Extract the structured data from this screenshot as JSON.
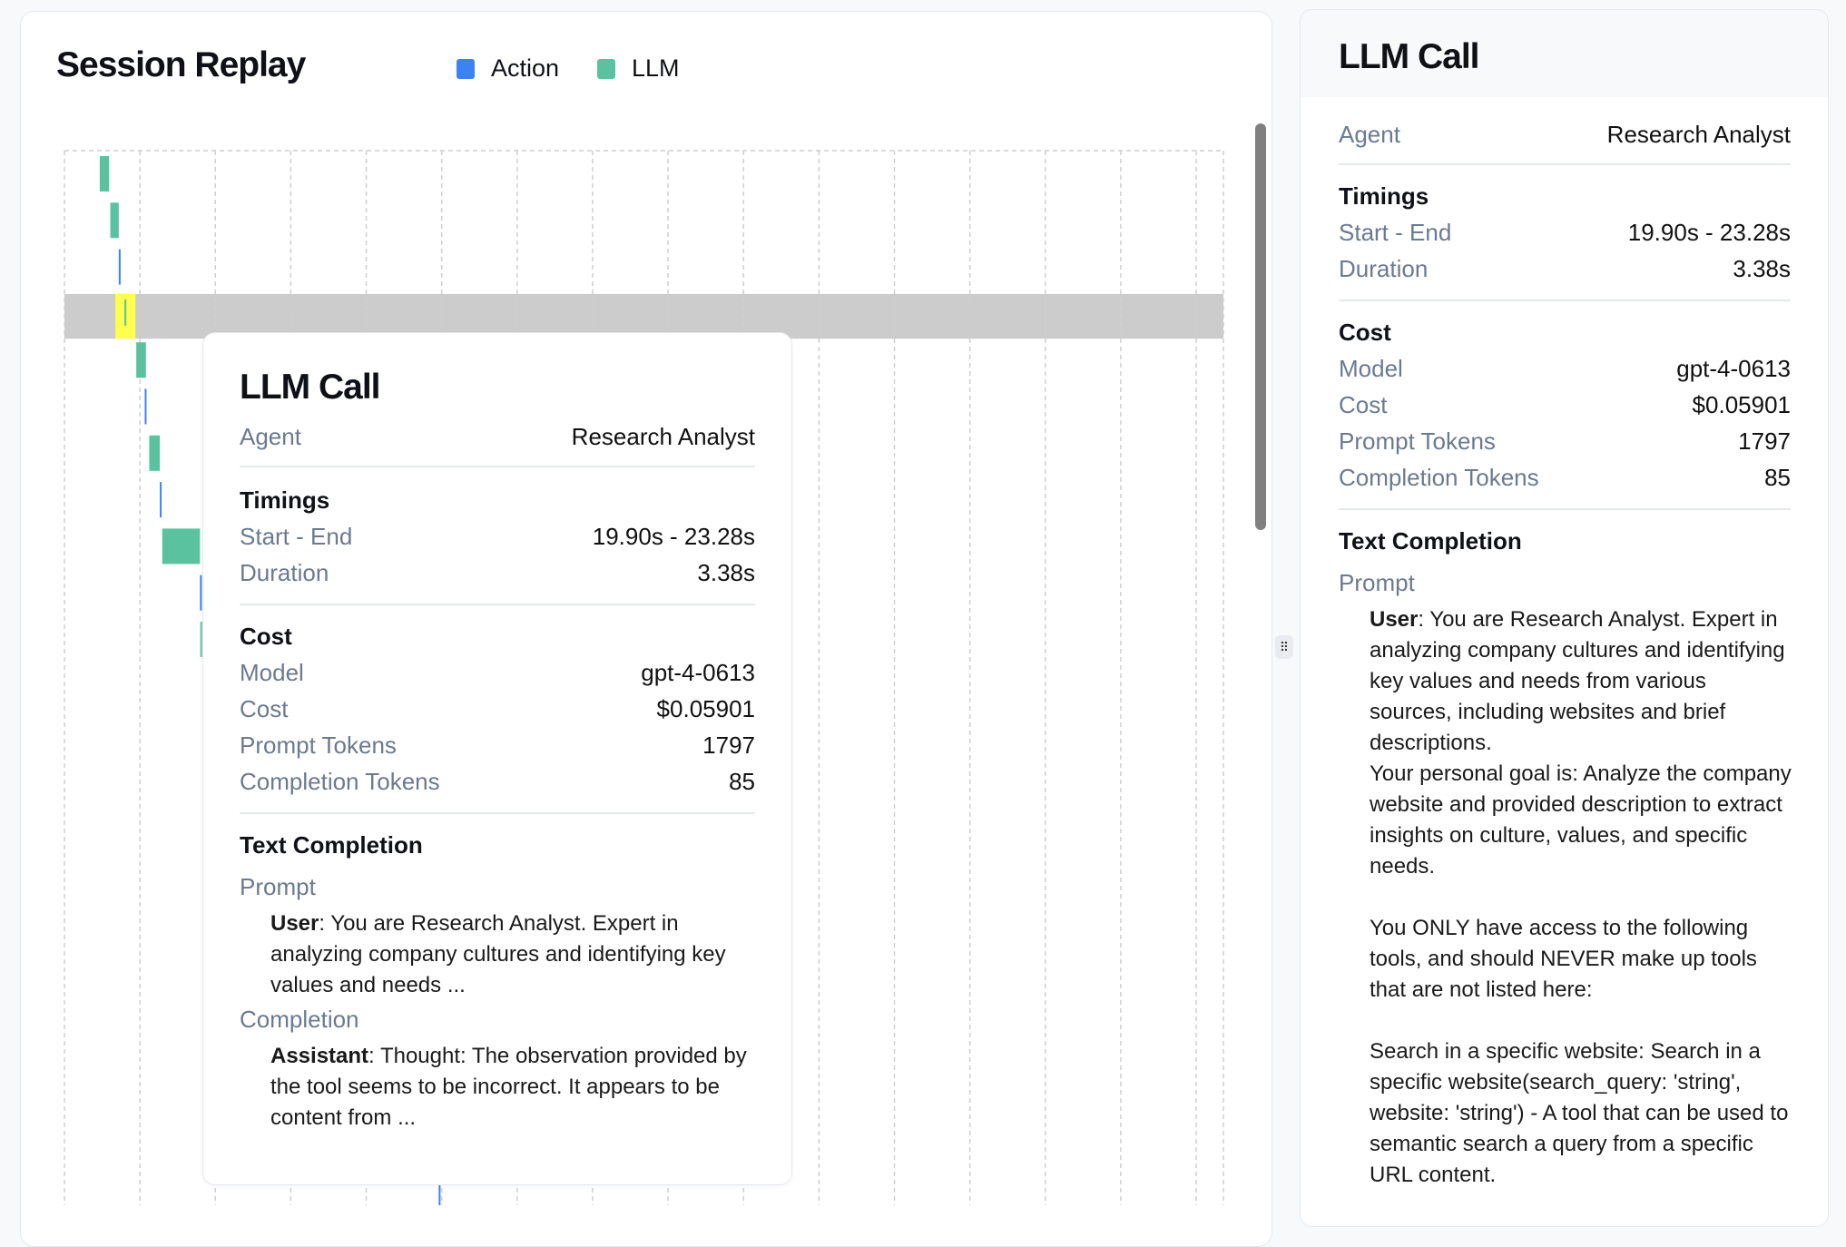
{
  "session": {
    "title": "Session Replay",
    "legend": [
      {
        "label": "Action",
        "color": "#3b82f6"
      },
      {
        "label": "LLM",
        "color": "#5bc2a0"
      }
    ]
  },
  "chart_data": {
    "type": "timeline",
    "x_unit": "s",
    "xlim": [
      0,
      384
    ],
    "grid": true,
    "grid_interval": 25,
    "highlight_color": "#ffff4d",
    "selected_row_color": "#cccccc",
    "bars": [
      {
        "type": "LLM",
        "start": 11.7,
        "end": 14.8
      },
      {
        "type": "LLM",
        "start": 15.2,
        "end": 18.0
      },
      {
        "type": "Action",
        "start": 18.0,
        "end": 18.3
      },
      {
        "type": "LLM",
        "start": 19.9,
        "end": 23.28,
        "selected": true
      },
      {
        "type": "LLM",
        "start": 23.8,
        "end": 27.0
      },
      {
        "type": "Action",
        "start": 26.6,
        "end": 26.9
      },
      {
        "type": "LLM",
        "start": 28.1,
        "end": 31.6
      },
      {
        "type": "Action",
        "start": 31.6,
        "end": 32.0
      },
      {
        "type": "LLM",
        "start": 32.4,
        "end": 44.9
      },
      {
        "type": "Action",
        "start": 44.9,
        "end": 45.3
      },
      {
        "type": "LLM",
        "start": 45.0,
        "end": 45.4
      },
      {
        "type": "Action",
        "start": 124.0,
        "end": 124.4,
        "row": 22
      }
    ]
  },
  "tooltip": {
    "title": "LLM Call",
    "agent_label": "Agent",
    "agent": "Research Analyst",
    "timings_heading": "Timings",
    "start_end_label": "Start - End",
    "start_end": "19.90s - 23.28s",
    "duration_label": "Duration",
    "duration": "3.38s",
    "cost_heading": "Cost",
    "model_label": "Model",
    "model": "gpt-4-0613",
    "cost_label": "Cost",
    "cost": "$0.05901",
    "prompt_tokens_label": "Prompt Tokens",
    "prompt_tokens": "1797",
    "completion_tokens_label": "Completion Tokens",
    "completion_tokens": "85",
    "text_heading": "Text Completion",
    "prompt_label": "Prompt",
    "prompt_role": "User",
    "prompt_text": ": You are Research Analyst. Expert in analyzing company cultures and identifying key values and needs ...",
    "completion_label": "Completion",
    "completion_role": "Assistant",
    "completion_text": ": Thought: The observation provided by the tool seems to be incorrect. It appears to be content from ..."
  },
  "panel": {
    "title": "LLM Call",
    "agent_label": "Agent",
    "agent": "Research Analyst",
    "timings_heading": "Timings",
    "start_end_label": "Start - End",
    "start_end": "19.90s - 23.28s",
    "duration_label": "Duration",
    "duration": "3.38s",
    "cost_heading": "Cost",
    "model_label": "Model",
    "model": "gpt-4-0613",
    "cost_label": "Cost",
    "cost": "$0.05901",
    "prompt_tokens_label": "Prompt Tokens",
    "prompt_tokens": "1797",
    "completion_tokens_label": "Completion Tokens",
    "completion_tokens": "85",
    "text_heading": "Text Completion",
    "prompt_label": "Prompt",
    "prompt_role": "User",
    "prompt_text": ": You are Research Analyst. Expert in analyzing company cultures and identifying key values and needs from various sources, including websites and brief descriptions.\nYour personal goal is: Analyze the company website and provided description to extract insights on culture, values, and specific needs.\n\nYou ONLY have access to the following tools, and should NEVER make up tools that are not listed here:\n\nSearch in a specific website: Search in a specific website(search_query: 'string', website: 'string') - A tool that can be used to semantic search a query from a specific URL content."
  },
  "icons": {
    "splitter": "drag-handle-icon"
  }
}
